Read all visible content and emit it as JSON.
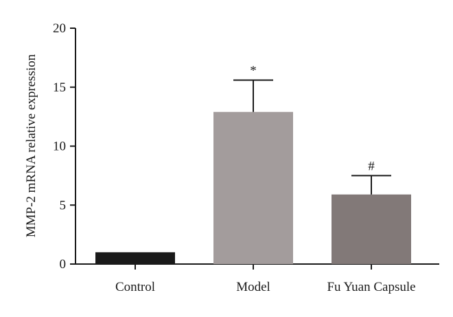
{
  "chart_data": {
    "type": "bar",
    "title": "",
    "xlabel": "",
    "ylabel": "MMP-2 mRNA relative expression",
    "ylim": [
      0,
      20
    ],
    "yticks": [
      0,
      5,
      10,
      15,
      20
    ],
    "grid": false,
    "categories": [
      "Control",
      "Model",
      "Fu Yuan Capsule"
    ],
    "values": [
      1.0,
      12.9,
      5.9
    ],
    "errors": [
      0,
      2.7,
      1.6
    ],
    "annotations": [
      "",
      "*",
      "#"
    ],
    "colors": [
      "#1a1a1a",
      "#a39c9c",
      "#827978"
    ]
  }
}
